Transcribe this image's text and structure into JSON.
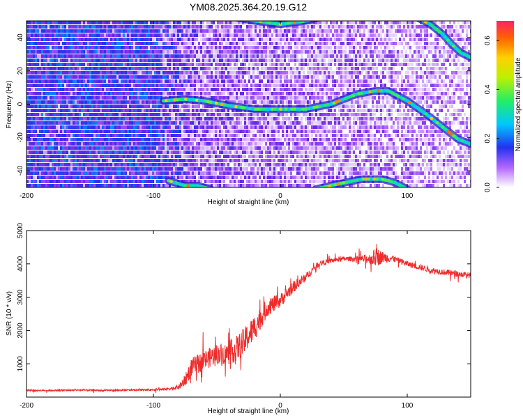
{
  "title": "YM08.2025.364.20.19.G12",
  "chart_data": [
    {
      "type": "heatmap",
      "name": "spectrogram",
      "xlabel": "Height of straight line (km)",
      "ylabel": "Frequency (Hz)",
      "xlim": [
        -200,
        150
      ],
      "ylim": [
        -50,
        50
      ],
      "xticks": [
        -200,
        -100,
        0,
        100
      ],
      "yticks": [
        -40,
        -20,
        0,
        20,
        40
      ],
      "colorbar": {
        "label": "Normalized spectral amplitude",
        "range": [
          0,
          0.68
        ],
        "ticks": [
          0,
          0.2,
          0.4,
          0.6
        ],
        "tick_labels": [
          "0.0",
          "0.2",
          "0.4",
          "0.6"
        ]
      },
      "ridge_lines": [
        {
          "name": "main-ridge",
          "points": [
            [
              -92,
              2
            ],
            [
              -75,
              3
            ],
            [
              -60,
              2
            ],
            [
              -40,
              -1
            ],
            [
              -20,
              -3
            ],
            [
              0,
              -3
            ],
            [
              20,
              -3
            ],
            [
              40,
              0
            ],
            [
              60,
              6
            ],
            [
              75,
              8
            ],
            [
              85,
              8
            ],
            [
              100,
              2
            ],
            [
              115,
              -6
            ],
            [
              130,
              -15
            ],
            [
              140,
              -21
            ],
            [
              150,
              -24
            ]
          ]
        },
        {
          "name": "upper-ridge",
          "points": [
            [
              -35,
              52
            ],
            [
              -20,
              50
            ],
            [
              0,
              48
            ],
            [
              20,
              50
            ],
            [
              30,
              52
            ]
          ]
        },
        {
          "name": "upper-right-ridge",
          "points": [
            [
              108,
              52
            ],
            [
              118,
              48
            ],
            [
              128,
              42
            ],
            [
              135,
              36
            ],
            [
              142,
              31
            ],
            [
              150,
              28
            ]
          ]
        },
        {
          "name": "lower-ridge",
          "points": [
            [
              -88,
              -46
            ],
            [
              -75,
              -49
            ],
            [
              -65,
              -49
            ],
            [
              -55,
              -51
            ]
          ]
        },
        {
          "name": "lower-ridge-2",
          "points": [
            [
              28,
              -51
            ],
            [
              45,
              -48
            ],
            [
              65,
              -45
            ],
            [
              80,
              -45
            ],
            [
              90,
              -47
            ],
            [
              100,
              -51
            ]
          ]
        }
      ]
    },
    {
      "type": "line",
      "name": "snr",
      "xlabel": "Height of straight line (km)",
      "ylabel": "SNR (10 * v/v)",
      "xlim": [
        -200,
        150
      ],
      "ylim": [
        0,
        5000
      ],
      "xticks": [
        -200,
        -100,
        0,
        100
      ],
      "yticks": [
        1000,
        2000,
        3000,
        4000,
        5000
      ],
      "color": "#ee2c2c",
      "series": [
        {
          "name": "SNR",
          "x": [
            -200,
            -180,
            -160,
            -140,
            -120,
            -100,
            -90,
            -80,
            -75,
            -70,
            -60,
            -50,
            -40,
            -30,
            -20,
            -10,
            0,
            10,
            20,
            30,
            40,
            50,
            60,
            70,
            76,
            80,
            90,
            100,
            110,
            120,
            130,
            140,
            150
          ],
          "y": [
            200,
            200,
            210,
            200,
            210,
            220,
            240,
            300,
            500,
            900,
            1100,
            1300,
            1300,
            1600,
            2100,
            2700,
            2900,
            3300,
            3600,
            4000,
            4100,
            4150,
            4150,
            4150,
            4200,
            4200,
            4150,
            4000,
            3900,
            3800,
            3750,
            3700,
            3650
          ],
          "noise": [
            40,
            40,
            40,
            40,
            40,
            50,
            60,
            120,
            300,
            450,
            500,
            500,
            550,
            700,
            650,
            450,
            350,
            300,
            200,
            150,
            120,
            120,
            130,
            250,
            500,
            300,
            150,
            150,
            150,
            150,
            150,
            150,
            150
          ]
        }
      ]
    }
  ]
}
